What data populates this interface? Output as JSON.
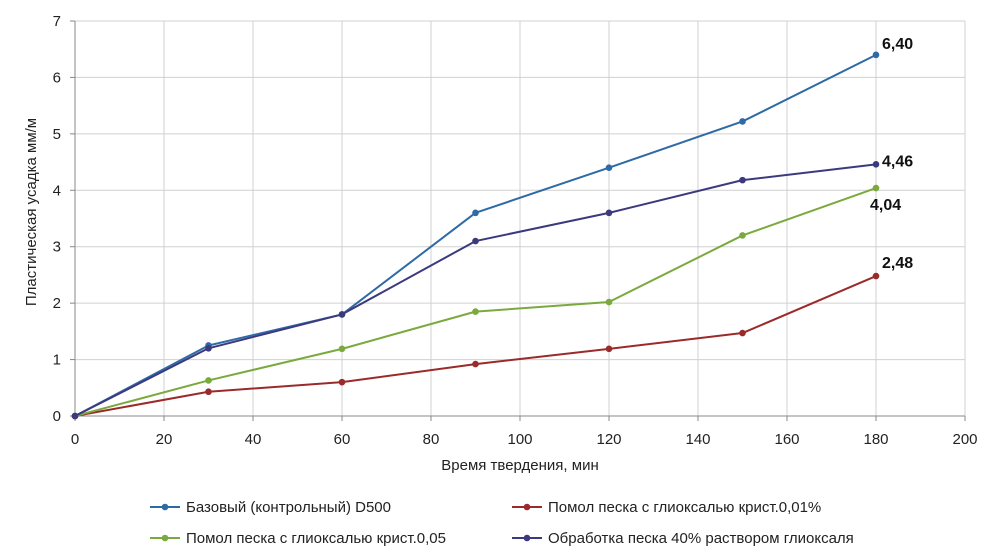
{
  "chart_data": {
    "type": "line",
    "title": "",
    "xlabel": "Время твердения, мин",
    "ylabel": "Пластическая усадка мм/м",
    "xlim": [
      0,
      200
    ],
    "ylim": [
      0,
      7
    ],
    "xticks": [
      0,
      20,
      40,
      60,
      80,
      100,
      120,
      140,
      160,
      180,
      200
    ],
    "yticks": [
      0,
      1,
      2,
      3,
      4,
      5,
      6,
      7
    ],
    "grid": true,
    "legend_position": "bottom",
    "x": [
      0,
      30,
      60,
      90,
      120,
      150,
      180
    ],
    "series": [
      {
        "name": "Базовый (контрольный) D500",
        "color": "#2e6aa5",
        "values": [
          0,
          1.25,
          1.8,
          3.6,
          4.4,
          5.22,
          6.4
        ],
        "end_label": "6,40"
      },
      {
        "name": "Помол песка с глиоксалью крист.0,01%",
        "color": "#9b2a2a",
        "values": [
          0,
          0.43,
          0.6,
          0.92,
          1.19,
          1.47,
          2.48
        ],
        "end_label": "2,48"
      },
      {
        "name": "Помол песка с глиоксалью крист.0,05",
        "color": "#7aaa3e",
        "values": [
          0,
          0.63,
          1.19,
          1.85,
          2.02,
          3.2,
          4.04
        ],
        "end_label": "4,04"
      },
      {
        "name": "Обработка песка 40% раствором глиоксаля",
        "color": "#3c3a7e",
        "values": [
          0,
          1.2,
          1.8,
          3.1,
          3.6,
          4.18,
          4.46
        ],
        "end_label": "4,46"
      }
    ]
  }
}
